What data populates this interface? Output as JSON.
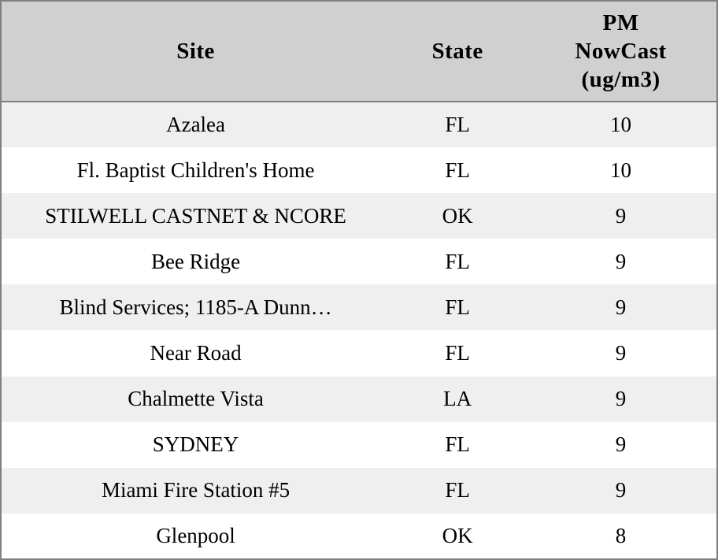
{
  "colors": {
    "header_bg": "#d0d0d0",
    "stripe_row_bg": "#efefef",
    "plain_row_bg": "#ffffff",
    "border": "#808080",
    "text": "#000000"
  },
  "table": {
    "columns": [
      {
        "label": "Site"
      },
      {
        "label": "State"
      },
      {
        "label": "PM NowCast (ug/m3)",
        "label_lines": [
          "PM",
          "NowCast",
          "(ug/m3)"
        ]
      }
    ],
    "rows": [
      {
        "site": "Azalea",
        "state": "FL",
        "pm_nowcast": "10"
      },
      {
        "site": "Fl. Baptist Children's Home",
        "state": "FL",
        "pm_nowcast": "10"
      },
      {
        "site": "STILWELL CASTNET & NCORE",
        "state": "OK",
        "pm_nowcast": "9"
      },
      {
        "site": "Bee Ridge",
        "state": "FL",
        "pm_nowcast": "9"
      },
      {
        "site": "Blind Services; 1185-A Dunn…",
        "state": "FL",
        "pm_nowcast": "9"
      },
      {
        "site": "Near Road",
        "state": "FL",
        "pm_nowcast": "9"
      },
      {
        "site": "Chalmette Vista",
        "state": "LA",
        "pm_nowcast": "9"
      },
      {
        "site": "SYDNEY",
        "state": "FL",
        "pm_nowcast": "9"
      },
      {
        "site": "Miami Fire Station #5",
        "state": "FL",
        "pm_nowcast": "9"
      },
      {
        "site": "Glenpool",
        "state": "OK",
        "pm_nowcast": "8"
      }
    ]
  }
}
